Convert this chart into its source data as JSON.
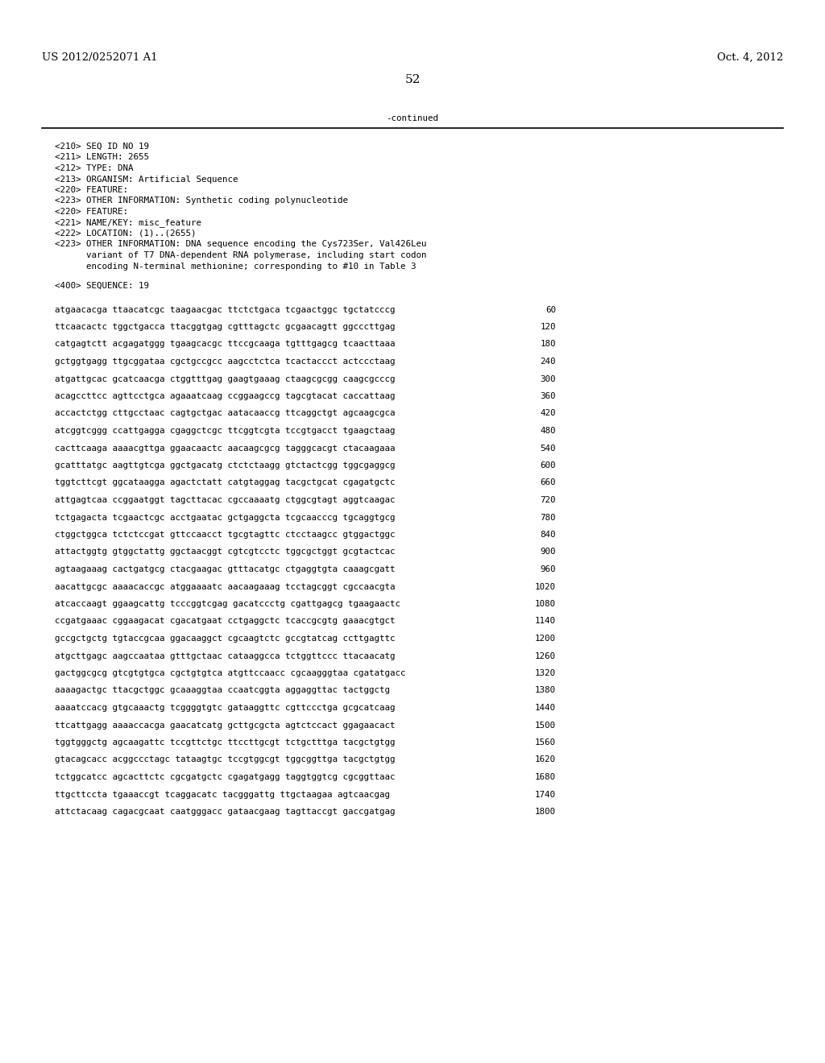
{
  "header_left": "US 2012/0252071 A1",
  "header_right": "Oct. 4, 2012",
  "page_number": "52",
  "continued_text": "-continued",
  "bg_color": "#ffffff",
  "text_color": "#000000",
  "font_size_header": 9.5,
  "font_size_body": 7.8,
  "font_size_page": 11,
  "sequence_block": [
    "<210> SEQ ID NO 19",
    "<211> LENGTH: 2655",
    "<212> TYPE: DNA",
    "<213> ORGANISM: Artificial Sequence",
    "<220> FEATURE:",
    "<223> OTHER INFORMATION: Synthetic coding polynucleotide",
    "<220> FEATURE:",
    "<221> NAME/KEY: misc_feature",
    "<222> LOCATION: (1)..(2655)",
    "<223> OTHER INFORMATION: DNA sequence encoding the Cys723Ser, Val426Leu",
    "      variant of T7 DNA-dependent RNA polymerase, including start codon",
    "      encoding N-terminal methionine; corresponding to #10 in Table 3",
    "",
    "<400> SEQUENCE: 19"
  ],
  "sequence_data": [
    [
      "atgaacacga ttaacatcgc taagaacgac ttctctgaca tcgaactggc tgctatcccg",
      "60"
    ],
    [
      "ttcaacactc tggctgacca ttacggtgag cgtttagctc gcgaacagtt ggcccttgag",
      "120"
    ],
    [
      "catgagtctt acgagatggg tgaagcacgc ttccgcaaga tgtttgagcg tcaacttaaa",
      "180"
    ],
    [
      "gctggtgagg ttgcggataa cgctgccgcc aagcctctca tcactaccct actccctaag",
      "240"
    ],
    [
      "atgattgcac gcatcaacga ctggtttgag gaagtgaaag ctaagcgcgg caagcgcccg",
      "300"
    ],
    [
      "acagccttcc agttcctgca agaaatcaag ccggaagccg tagcgtacat caccattaag",
      "360"
    ],
    [
      "accactctgg cttgcctaac cagtgctgac aatacaaccg ttcaggctgt agcaagcgca",
      "420"
    ],
    [
      "atcggtcggg ccattgagga cgaggctcgc ttcggtcgta tccgtgacct tgaagctaag",
      "480"
    ],
    [
      "cacttcaaga aaaacgttga ggaacaactc aacaagcgcg tagggcacgt ctacaagaaa",
      "540"
    ],
    [
      "gcatttatgc aagttgtcga ggctgacatg ctctctaagg gtctactcgg tggcgaggcg",
      "600"
    ],
    [
      "tggtcttcgt ggcataagga agactctatt catgtaggag tacgctgcat cgagatgctc",
      "660"
    ],
    [
      "attgagtcaa ccggaatggt tagcttacac cgccaaaatg ctggcgtagt aggtcaagac",
      "720"
    ],
    [
      "tctgagacta tcgaactcgc acctgaatac gctgaggcta tcgcaacccg tgcaggtgcg",
      "780"
    ],
    [
      "ctggctggca tctctccgat gttccaacct tgcgtagttc ctcctaagcc gtggactggc",
      "840"
    ],
    [
      "attactggtg gtggctattg ggctaacggt cgtcgtcctc tggcgctggt gcgtactcac",
      "900"
    ],
    [
      "agtaagaaag cactgatgcg ctacgaagac gtttacatgc ctgaggtgta caaagcgatt",
      "960"
    ],
    [
      "aacattgcgc aaaacaccgc atggaaaatc aacaagaaag tcctagcggt cgccaacgta",
      "1020"
    ],
    [
      "atcaccaagt ggaagcattg tcccggtcgag gacatccctg cgattgagcg tgaagaactc",
      "1080"
    ],
    [
      "ccgatgaaac cggaagacat cgacatgaat cctgaggctc tcaccgcgtg gaaacgtgct",
      "1140"
    ],
    [
      "gccgctgctg tgtaccgcaa ggacaaggct cgcaagtctc gccgtatcag ccttgagttc",
      "1200"
    ],
    [
      "atgcttgagc aagccaataa gtttgctaac cataaggcca tctggttccc ttacaacatg",
      "1260"
    ],
    [
      "gactggcgcg gtcgtgtgca cgctgtgtca atgttccaacc cgcaagggtaa cgatatgacc",
      "1320"
    ],
    [
      "aaaagactgc ttacgctggc gcaaaggtaa ccaatcggta aggaggttac tactggctg",
      "1380"
    ],
    [
      "aaaatccacg gtgcaaactg tcggggtgtc gataaggttc cgttccctga gcgcatcaag",
      "1440"
    ],
    [
      "ttcattgagg aaaaccacga gaacatcatg gcttgcgcta agtctccact ggagaacact",
      "1500"
    ],
    [
      "tggtgggctg agcaagattc tccgttctgc ttccttgcgt tctgctttga tacgctgtgg",
      "1560"
    ],
    [
      "gtacagcacc acggccctagc tataagtgc tccgtggcgt tggcggttga tacgctgtgg",
      "1620"
    ],
    [
      "tctggcatcc agcacttctc cgcgatgctc cgagatgagg taggtggtcg cgcggttaac",
      "1680"
    ],
    [
      "ttgcttccta tgaaaccgt tcaggacatc tacgggattg ttgctaagaa agtcaacgag",
      "1740"
    ],
    [
      "attctacaag cagacgcaat caatgggacc gataacgaag tagttaccgt gaccgatgag",
      "1800"
    ]
  ]
}
